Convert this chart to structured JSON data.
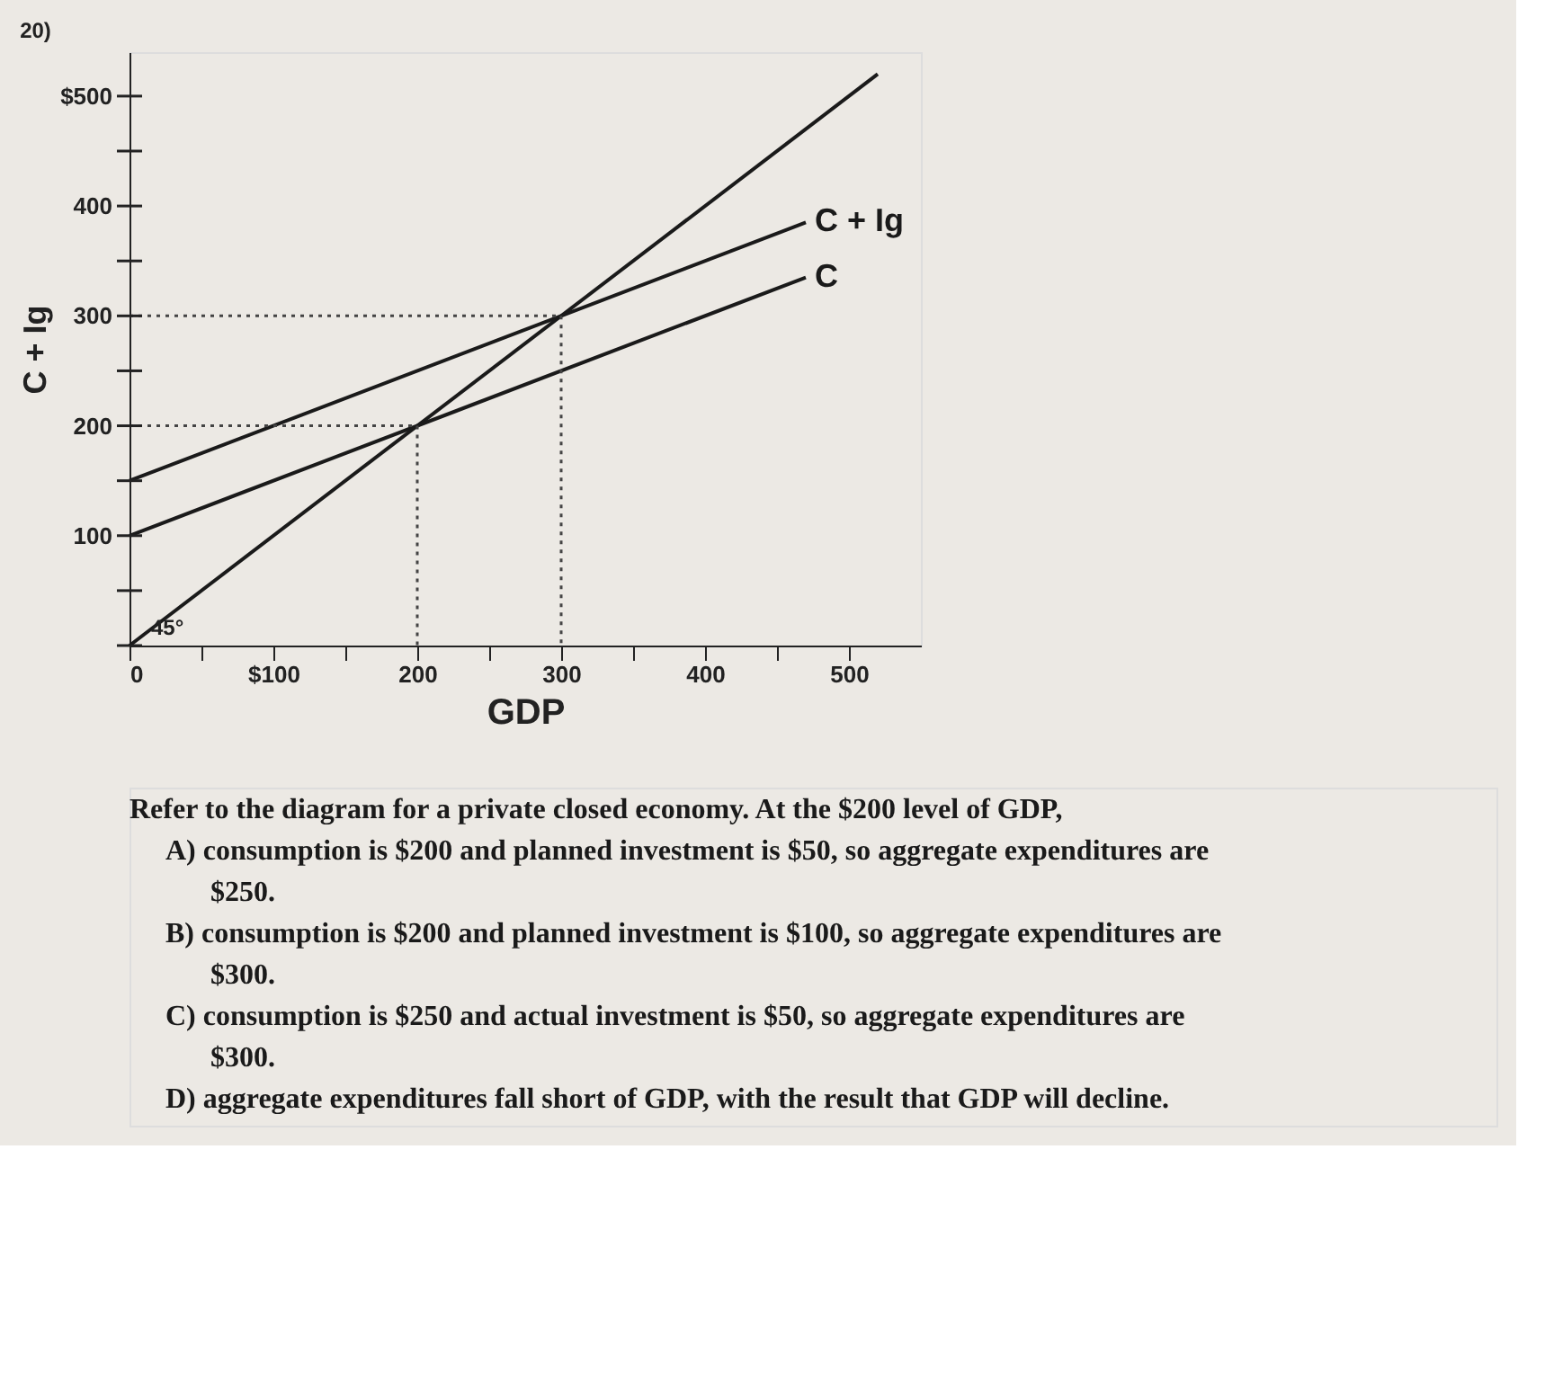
{
  "chart_data": {
    "type": "line",
    "title": "20)",
    "xlabel": "GDP",
    "ylabel": "C + Ig",
    "xlim": [
      0,
      550
    ],
    "ylim": [
      0,
      540
    ],
    "xticks": [
      {
        "value": 0,
        "label": "0"
      },
      {
        "value": 50,
        "label": null
      },
      {
        "value": 100,
        "label": "$100"
      },
      {
        "value": 150,
        "label": null
      },
      200,
      {
        "value": 250,
        "label": null
      },
      300,
      {
        "value": 350,
        "label": null
      },
      400,
      {
        "value": 450,
        "label": null
      },
      500
    ],
    "yticks": [
      {
        "value": 0,
        "label": null
      },
      {
        "value": 50,
        "label": null
      },
      100,
      {
        "value": 150,
        "label": null
      },
      200,
      {
        "value": 250,
        "label": null
      },
      300,
      {
        "value": 350,
        "label": null
      },
      400,
      {
        "value": 450,
        "label": null
      },
      {
        "value": 500,
        "label": "$500"
      }
    ],
    "grid": false,
    "marker": "none",
    "series": [
      {
        "x": [
          0,
          520
        ],
        "values": [
          0,
          520
        ],
        "color": "#1a1a1a",
        "line_style": "solid"
      },
      {
        "name": "C + Ig",
        "x": [
          0,
          470
        ],
        "values": [
          150,
          385
        ],
        "color": "#1a1a1a",
        "line_style": "solid"
      },
      {
        "name": "C",
        "x": [
          0,
          470
        ],
        "values": [
          100,
          335
        ],
        "color": "#1a1a1a",
        "line_style": "solid"
      },
      {
        "x": [
          0,
          200,
          200
        ],
        "values": [
          200,
          200,
          0
        ],
        "color": "#444444",
        "line_style": "dotted"
      },
      {
        "x": [
          0,
          300,
          300
        ],
        "values": [
          300,
          300,
          0
        ],
        "color": "#444444",
        "line_style": "dotted"
      }
    ],
    "annotations": [
      "45°",
      "Refer to the diagram for a private closed economy. At the $200 level of GDP,",
      "A) consumption is $200 and planned investment is $50, so aggregate expenditures are $250.",
      "B) consumption is $200 and planned investment is $100, so aggregate expenditures are $300.",
      "C) consumption is $250 and actual investment is $50, so aggregate expenditures are $300.",
      "D) aggregate expenditures fall short of GDP, with the result that GDP will decline."
    ]
  }
}
